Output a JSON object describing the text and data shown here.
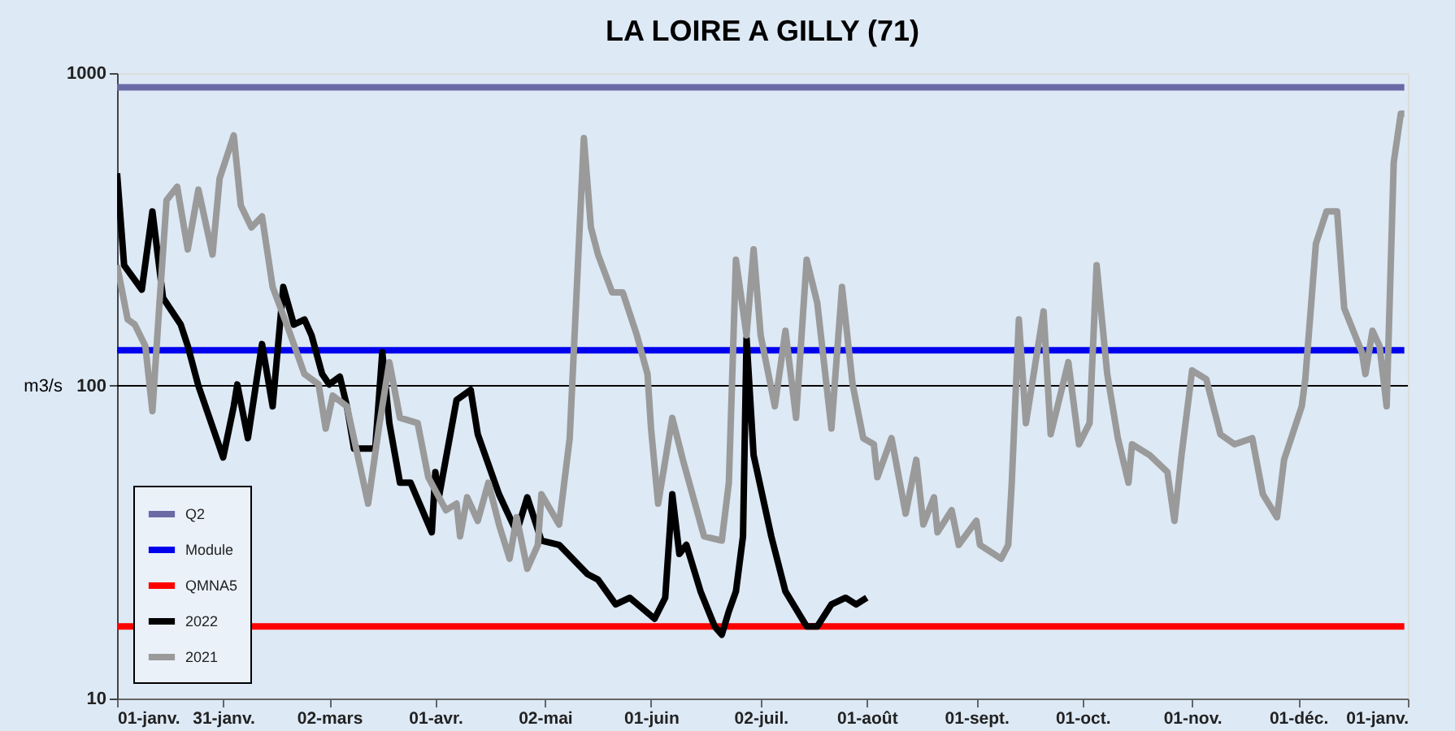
{
  "chart_data": {
    "type": "line",
    "title": "LA LOIRE A GILLY (71)",
    "ylabel": "m3/s",
    "log": true,
    "legend": "bottom left",
    "xlim": [
      "2022-01-01",
      "2023-01-01"
    ],
    "xticks": [
      {
        "value": "2022-01-01",
        "label": "01-janv."
      },
      {
        "value": "2022-01-31",
        "label": "31-janv."
      },
      {
        "value": "2022-03-02",
        "label": "02-mars"
      },
      {
        "value": "2022-04-01",
        "label": "01-avr."
      },
      {
        "value": "2022-05-02",
        "label": "02-mai"
      },
      {
        "value": "2022-06-01",
        "label": "01-juin"
      },
      {
        "value": "2022-07-02",
        "label": "02-juil."
      },
      {
        "value": "2022-08-01",
        "label": "01-août"
      },
      {
        "value": "2022-09-01",
        "label": "01-sept."
      },
      {
        "value": "2022-10-01",
        "label": "01-oct."
      },
      {
        "value": "2022-11-01",
        "label": "01-nov."
      },
      {
        "value": "2022-12-01",
        "label": "01-déc."
      },
      {
        "value": "2023-01-01",
        "label": "01-janv."
      }
    ],
    "ylim": [
      10,
      1000
    ],
    "yticks": [
      10,
      100,
      1000
    ],
    "ref_lines": [
      {
        "axis": "y",
        "value": 100,
        "color": "#000000"
      }
    ],
    "series": [
      {
        "name": "Q2",
        "color": "#6a6aa6",
        "x": [
          "2022-01-01",
          "2022-12-31"
        ],
        "values": [
          900,
          900
        ]
      },
      {
        "name": "Module",
        "color": "#0000ee",
        "x": [
          "2022-01-01",
          "2022-12-31"
        ],
        "values": [
          130,
          130
        ]
      },
      {
        "name": "QMNA5",
        "color": "#ff0000",
        "x": [
          "2022-01-01",
          "2022-12-31"
        ],
        "values": [
          17,
          17
        ]
      },
      {
        "name": "2022",
        "color": "#000000",
        "x": [
          "2022-01-01",
          "2022-01-03",
          "2022-01-08",
          "2022-01-11",
          "2022-01-14",
          "2022-01-19",
          "2022-01-21",
          "2022-01-24",
          "2022-01-31",
          "2022-02-03",
          "2022-02-04",
          "2022-02-07",
          "2022-02-11",
          "2022-02-14",
          "2022-02-17",
          "2022-02-20",
          "2022-02-23",
          "2022-02-25",
          "2022-02-28",
          "2022-03-02",
          "2022-03-05",
          "2022-03-07",
          "2022-03-09",
          "2022-03-15",
          "2022-03-17",
          "2022-03-19",
          "2022-03-22",
          "2022-03-25",
          "2022-03-31",
          "2022-04-01",
          "2022-04-02",
          "2022-04-07",
          "2022-04-11",
          "2022-04-13",
          "2022-04-19",
          "2022-04-24",
          "2022-04-27",
          "2022-05-01",
          "2022-05-06",
          "2022-05-14",
          "2022-05-17",
          "2022-05-22",
          "2022-05-26",
          "2022-06-02",
          "2022-06-05",
          "2022-06-07",
          "2022-06-09",
          "2022-06-11",
          "2022-06-15",
          "2022-06-19",
          "2022-06-21",
          "2022-06-23",
          "2022-06-25",
          "2022-06-27",
          "2022-06-28",
          "2022-06-30",
          "2022-07-05",
          "2022-07-09",
          "2022-07-15",
          "2022-07-18",
          "2022-07-22",
          "2022-07-26",
          "2022-07-29",
          "2022-08-01"
        ],
        "values": [
          478,
          243,
          203,
          361,
          191,
          157,
          134,
          100,
          59,
          86,
          101,
          68,
          136,
          86,
          207,
          157,
          163,
          145,
          109,
          101,
          107,
          86,
          63,
          63,
          128,
          76,
          49,
          49,
          34,
          53,
          44,
          90,
          97,
          70,
          45,
          34,
          44,
          32,
          31,
          25,
          24,
          20,
          21,
          18,
          21,
          45,
          29,
          31,
          22,
          17,
          16,
          19,
          22,
          33,
          142,
          60,
          33,
          22,
          17,
          17,
          20,
          21,
          20,
          21
        ]
      },
      {
        "name": "2021",
        "color": "#9a9a9a",
        "x": [
          "2022-01-01",
          "2022-01-04",
          "2022-01-06",
          "2022-01-09",
          "2022-01-11",
          "2022-01-13",
          "2022-01-15",
          "2022-01-18",
          "2022-01-21",
          "2022-01-24",
          "2022-01-28",
          "2022-01-30",
          "2022-02-03",
          "2022-02-05",
          "2022-02-08",
          "2022-02-11",
          "2022-02-14",
          "2022-02-18",
          "2022-02-23",
          "2022-02-27",
          "2022-03-01",
          "2022-03-03",
          "2022-03-07",
          "2022-03-13",
          "2022-03-16",
          "2022-03-19",
          "2022-03-22",
          "2022-03-27",
          "2022-03-30",
          "2022-04-04",
          "2022-04-07",
          "2022-04-08",
          "2022-04-10",
          "2022-04-13",
          "2022-04-16",
          "2022-04-19",
          "2022-04-22",
          "2022-04-24",
          "2022-04-27",
          "2022-04-30",
          "2022-05-01",
          "2022-05-06",
          "2022-05-09",
          "2022-05-13",
          "2022-05-15",
          "2022-05-17",
          "2022-05-21",
          "2022-05-24",
          "2022-05-28",
          "2022-05-31",
          "2022-06-01",
          "2022-06-03",
          "2022-06-07",
          "2022-06-10",
          "2022-06-16",
          "2022-06-21",
          "2022-06-23",
          "2022-06-25",
          "2022-06-28",
          "2022-06-30",
          "2022-07-02",
          "2022-07-06",
          "2022-07-09",
          "2022-07-12",
          "2022-07-15",
          "2022-07-18",
          "2022-07-22",
          "2022-07-25",
          "2022-07-28",
          "2022-07-31",
          "2022-08-03",
          "2022-08-04",
          "2022-08-08",
          "2022-08-12",
          "2022-08-15",
          "2022-08-17",
          "2022-08-20",
          "2022-08-21",
          "2022-08-25",
          "2022-08-27",
          "2022-09-01",
          "2022-09-02",
          "2022-09-08",
          "2022-09-10",
          "2022-09-11",
          "2022-09-13",
          "2022-09-15",
          "2022-09-20",
          "2022-09-22",
          "2022-09-27",
          "2022-09-30",
          "2022-10-03",
          "2022-10-05",
          "2022-10-08",
          "2022-10-11",
          "2022-10-14",
          "2022-10-15",
          "2022-10-20",
          "2022-10-25",
          "2022-10-27",
          "2022-10-29",
          "2022-11-01",
          "2022-11-05",
          "2022-11-09",
          "2022-11-13",
          "2022-11-18",
          "2022-11-21",
          "2022-11-25",
          "2022-11-27",
          "2022-12-02",
          "2022-12-03",
          "2022-12-06",
          "2022-12-09",
          "2022-12-12",
          "2022-12-14",
          "2022-12-19",
          "2022-12-20",
          "2022-12-22",
          "2022-12-24",
          "2022-12-26",
          "2022-12-28",
          "2022-12-30",
          "2022-12-31"
        ],
        "values": [
          243,
          163,
          157,
          134,
          83,
          184,
          392,
          433,
          273,
          424,
          263,
          460,
          632,
          377,
          321,
          348,
          207,
          157,
          109,
          101,
          73,
          93,
          86,
          42,
          73,
          119,
          79,
          76,
          51,
          40,
          42,
          33,
          44,
          37,
          49,
          36,
          28,
          38,
          26,
          31,
          45,
          36,
          68,
          620,
          321,
          263,
          199,
          199,
          145,
          109,
          73,
          42,
          79,
          58,
          33,
          32,
          49,
          253,
          145,
          273,
          145,
          86,
          150,
          79,
          253,
          184,
          73,
          207,
          101,
          68,
          65,
          51,
          68,
          39,
          58,
          36,
          44,
          34,
          40,
          31,
          37,
          31,
          28,
          31,
          49,
          163,
          76,
          173,
          70,
          119,
          65,
          76,
          243,
          109,
          68,
          49,
          65,
          60,
          53,
          37,
          60,
          112,
          105,
          70,
          65,
          68,
          45,
          38,
          58,
          86,
          105,
          285,
          361,
          361,
          177,
          128,
          109,
          150,
          134,
          86,
          518,
          741,
          741
        ]
      }
    ]
  }
}
